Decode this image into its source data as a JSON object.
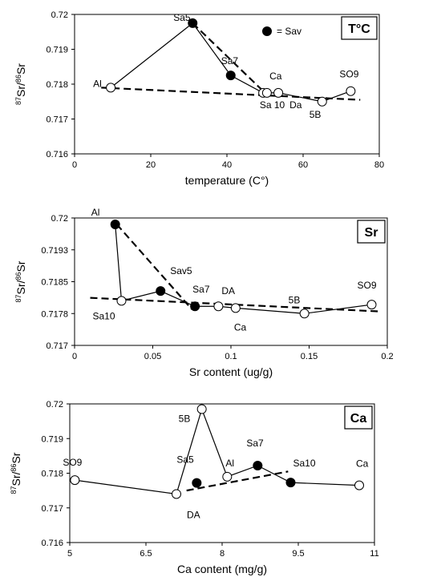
{
  "chart_data": [
    {
      "type": "scatter",
      "badge": "T°C",
      "legend": {
        "marker": "filled",
        "label": "= Sav",
        "placement": "top-right"
      },
      "xlabel": "temperature (C°)",
      "ylabel_mass1": "87",
      "ylabel_el1": "Sr/",
      "ylabel_mass2": "86",
      "ylabel_el2": "Sr",
      "xlim": [
        0,
        80
      ],
      "ylim": [
        0.716,
        0.72
      ],
      "xticks": [
        "0",
        "20",
        "40",
        "60",
        "80"
      ],
      "yticks": [
        "0.716",
        "0.717",
        "0.718",
        "0.719",
        "0.72"
      ],
      "series": [
        {
          "values": [
            {
              "label": "Al",
              "x": 9.5,
              "y": 0.7179,
              "filled": false
            },
            {
              "label": "Sa5",
              "x": 31,
              "y": 0.71975,
              "filled": true
            },
            {
              "label": "Sa7",
              "x": 41,
              "y": 0.71825,
              "filled": true
            },
            {
              "label": "Ca",
              "x": 49.5,
              "y": 0.71775,
              "filled": false
            },
            {
              "label": "Sa 10",
              "x": 50.5,
              "y": 0.71775,
              "filled": false
            },
            {
              "label": "Da",
              "x": 53.5,
              "y": 0.71775,
              "filled": false
            },
            {
              "label": "5B",
              "x": 65,
              "y": 0.7175,
              "filled": false
            },
            {
              "label": "SO9",
              "x": 72.5,
              "y": 0.7178,
              "filled": false
            }
          ]
        }
      ],
      "trend_lines": [
        {
          "from": [
            7,
            0.7179
          ],
          "to": [
            75,
            0.71755
          ]
        },
        {
          "from": [
            31,
            0.71975
          ],
          "to": [
            50,
            0.71775
          ]
        }
      ]
    },
    {
      "type": "scatter",
      "badge": "Sr",
      "xlabel": "Sr content (ug/g)",
      "ylabel_mass1": "87",
      "ylabel_el1": "Sr/",
      "ylabel_mass2": "86",
      "ylabel_el2": "Sr",
      "xlim": [
        0,
        0.2
      ],
      "ylim": [
        0.717,
        0.72
      ],
      "xticks": [
        "0",
        "0.05",
        "0.1",
        "0.15",
        "0.2"
      ],
      "yticks": [
        "0.717",
        "0.7178",
        "0.7185",
        "0.7193",
        "0.72"
      ],
      "series": [
        {
          "values": [
            {
              "label": "Al",
              "x": 0.026,
              "y": 0.71985,
              "filled": true
            },
            {
              "label": "Sa10",
              "x": 0.03,
              "y": 0.71805,
              "filled": false
            },
            {
              "label": "Sav5",
              "x": 0.055,
              "y": 0.71828,
              "filled": true
            },
            {
              "label": "Sa7",
              "x": 0.077,
              "y": 0.71792,
              "filled": true
            },
            {
              "label": "DA",
              "x": 0.092,
              "y": 0.71792,
              "filled": false
            },
            {
              "label": "Ca",
              "x": 0.103,
              "y": 0.71788,
              "filled": false
            },
            {
              "label": "5B",
              "x": 0.147,
              "y": 0.71775,
              "filled": false
            },
            {
              "label": "SO9",
              "x": 0.19,
              "y": 0.71796,
              "filled": false
            }
          ]
        }
      ],
      "trend_lines": [
        {
          "from": [
            0.01,
            0.71812
          ],
          "to": [
            0.195,
            0.7178
          ]
        },
        {
          "from": [
            0.027,
            0.71985
          ],
          "to": [
            0.075,
            0.71785
          ]
        }
      ]
    },
    {
      "type": "scatter",
      "badge": "Ca",
      "xlabel": "Ca content (mg/g)",
      "ylabel_mass1": "87",
      "ylabel_el1": "Sr/",
      "ylabel_mass2": "86",
      "ylabel_el2": "Sr",
      "xlim": [
        5,
        11
      ],
      "ylim": [
        0.716,
        0.72
      ],
      "xticks": [
        "5",
        "6.5",
        "8",
        "9.5",
        "11"
      ],
      "yticks": [
        "0.716",
        "0.717",
        "0.718",
        "0.719",
        "0.72"
      ],
      "series": [
        {
          "values": [
            {
              "label": "SO9",
              "x": 5.1,
              "y": 0.7178,
              "filled": false
            },
            {
              "label": "DA",
              "x": 7.1,
              "y": 0.7174,
              "filled": false
            },
            {
              "label": "5B",
              "x": 7.6,
              "y": 0.71985,
              "filled": false
            },
            {
              "label": "Al",
              "x": 8.1,
              "y": 0.7179,
              "filled": false
            },
            {
              "label": "Sa7",
              "x": 8.7,
              "y": 0.71822,
              "filled": true
            },
            {
              "label": "Sa10",
              "x": 9.35,
              "y": 0.71773,
              "filled": true
            },
            {
              "label": "Ca",
              "x": 10.7,
              "y": 0.71765,
              "filled": false
            },
            {
              "label": "Sa5",
              "x": 7.5,
              "y": 0.71772,
              "filled": true
            }
          ]
        }
      ],
      "trend_lines": [
        {
          "from": [
            7.3,
            0.7175
          ],
          "to": [
            9.3,
            0.71805
          ]
        }
      ]
    }
  ]
}
